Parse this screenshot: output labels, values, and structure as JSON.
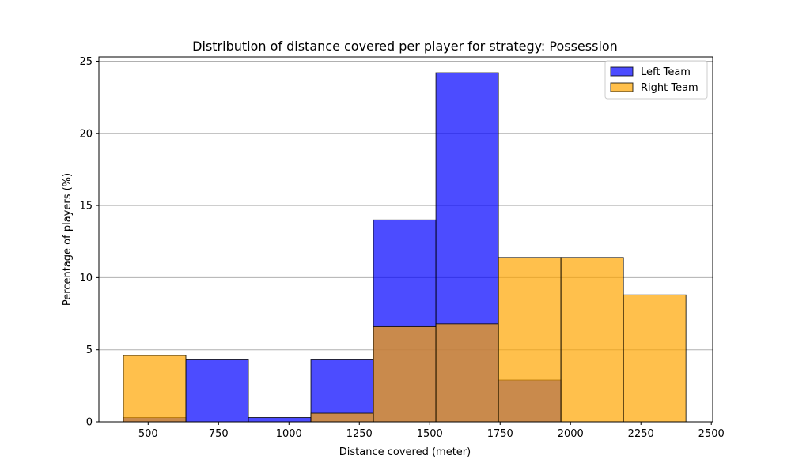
{
  "chart_data": {
    "type": "bar",
    "title": "Distribution of distance covered per player for strategy: Possession",
    "xlabel": "Distance covered (meter)",
    "ylabel": "Percentage of players (%)",
    "xlim": [
      325,
      2505
    ],
    "ylim": [
      0,
      25.3
    ],
    "xticks": [
      500,
      750,
      1000,
      1250,
      1500,
      1750,
      2000,
      2250,
      2500
    ],
    "yticks": [
      0,
      5,
      10,
      15,
      20,
      25
    ],
    "grid": "horizontal",
    "legend_position": "top-right",
    "bin_edges": [
      412,
      634,
      856,
      1078,
      1300,
      1522,
      1744,
      1966,
      2188,
      2410
    ],
    "series": [
      {
        "name": "Left Team",
        "color": "#0000ff",
        "values": [
          0.3,
          4.3,
          0.3,
          4.3,
          14.0,
          24.2,
          2.9,
          0,
          0
        ]
      },
      {
        "name": "Right Team",
        "color": "#ffa500",
        "values": [
          4.6,
          0,
          0,
          0.6,
          6.6,
          6.8,
          11.4,
          11.4,
          8.8
        ]
      }
    ]
  }
}
